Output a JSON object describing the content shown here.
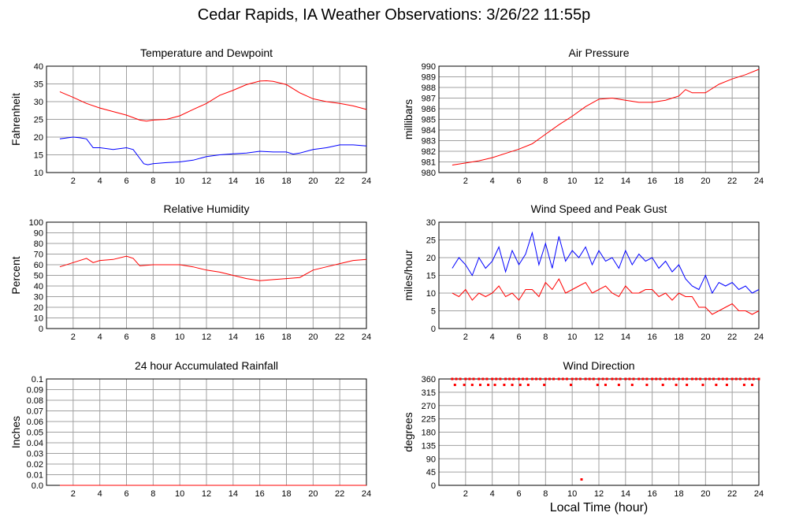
{
  "page_title": "Cedar Rapids, IA Weather Observations: 3/26/22 11:55p",
  "xlabel": "Local Time (hour)",
  "colors": {
    "red": "#ff0000",
    "blue": "#0000ff",
    "grid": "#a0a0a0"
  },
  "chart_data": [
    {
      "id": "temp",
      "type": "line",
      "title": "Temperature and Dewpoint",
      "ylabel": "Fahrenheit",
      "xlim": [
        0,
        24
      ],
      "ylim": [
        10,
        40
      ],
      "xticks": [
        2,
        4,
        6,
        8,
        10,
        12,
        14,
        16,
        18,
        20,
        22,
        24
      ],
      "yticks": [
        10,
        15,
        20,
        25,
        30,
        35,
        40
      ],
      "series": [
        {
          "color": "#ff0000",
          "x": [
            1,
            2,
            3,
            4,
            5,
            6,
            7,
            7.5,
            8,
            9,
            10,
            11,
            12,
            13,
            14,
            15,
            16,
            16.5,
            17,
            18,
            19,
            20,
            21,
            22,
            23,
            24
          ],
          "y": [
            32.8,
            31.2,
            29.5,
            28.2,
            27.2,
            26.2,
            24.8,
            24.5,
            24.8,
            25.0,
            26.0,
            27.8,
            29.5,
            31.8,
            33.2,
            34.8,
            35.8,
            35.9,
            35.7,
            34.8,
            32.5,
            30.8,
            30.0,
            29.5,
            28.8,
            27.8
          ]
        },
        {
          "color": "#0000ff",
          "x": [
            1,
            2,
            2.5,
            3,
            3.5,
            4,
            5,
            6,
            6.5,
            7,
            7.3,
            7.6,
            8,
            9,
            10,
            11,
            12,
            13,
            14,
            15,
            16,
            17,
            18,
            18.5,
            19,
            20,
            21,
            22,
            23,
            24
          ],
          "y": [
            19.5,
            20.0,
            19.8,
            19.5,
            17.0,
            17.0,
            16.5,
            17.0,
            16.5,
            14.0,
            12.5,
            12.2,
            12.5,
            12.8,
            13.0,
            13.5,
            14.5,
            15.0,
            15.3,
            15.5,
            16.0,
            15.8,
            15.8,
            15.2,
            15.5,
            16.5,
            17.0,
            17.8,
            17.8,
            17.5
          ]
        }
      ]
    },
    {
      "id": "pressure",
      "type": "line",
      "title": "Air Pressure",
      "ylabel": "millibars",
      "xlim": [
        0,
        24
      ],
      "ylim": [
        980,
        990
      ],
      "xticks": [
        2,
        4,
        6,
        8,
        10,
        12,
        14,
        16,
        18,
        20,
        22,
        24
      ],
      "yticks": [
        980,
        981,
        982,
        983,
        984,
        985,
        986,
        987,
        988,
        989,
        990
      ],
      "series": [
        {
          "color": "#ff0000",
          "x": [
            1,
            2,
            3,
            4,
            5,
            6,
            7,
            8,
            9,
            10,
            11,
            12,
            13,
            14,
            15,
            16,
            17,
            18,
            18.5,
            19,
            20,
            21,
            22,
            23,
            24
          ],
          "y": [
            980.7,
            980.9,
            981.1,
            981.4,
            981.8,
            982.2,
            982.7,
            983.6,
            984.5,
            985.3,
            986.2,
            986.9,
            987.0,
            986.8,
            986.6,
            986.6,
            986.8,
            987.2,
            987.8,
            987.5,
            987.5,
            988.3,
            988.8,
            989.2,
            989.7
          ]
        }
      ]
    },
    {
      "id": "humidity",
      "type": "line",
      "title": "Relative Humidity",
      "ylabel": "Percent",
      "xlim": [
        0,
        24
      ],
      "ylim": [
        0,
        100
      ],
      "xticks": [
        2,
        4,
        6,
        8,
        10,
        12,
        14,
        16,
        18,
        20,
        22,
        24
      ],
      "yticks": [
        0,
        10,
        20,
        30,
        40,
        50,
        60,
        70,
        80,
        90,
        100
      ],
      "series": [
        {
          "color": "#ff0000",
          "x": [
            1,
            2,
            3,
            3.5,
            4,
            5,
            6,
            6.5,
            7,
            8,
            9,
            10,
            11,
            12,
            13,
            14,
            15,
            16,
            17,
            18,
            19,
            20,
            21,
            22,
            23,
            24
          ],
          "y": [
            58,
            62,
            66,
            62,
            64,
            65,
            68,
            66,
            59,
            60,
            60,
            60,
            58,
            55,
            53,
            50,
            47,
            45,
            46,
            47,
            48,
            55,
            58,
            61,
            64,
            65
          ]
        }
      ]
    },
    {
      "id": "wind",
      "type": "line",
      "title": "Wind Speed and Peak Gust",
      "ylabel": "miles/hour",
      "xlim": [
        0,
        24
      ],
      "ylim": [
        0,
        30
      ],
      "xticks": [
        2,
        4,
        6,
        8,
        10,
        12,
        14,
        16,
        18,
        20,
        22,
        24
      ],
      "yticks": [
        0,
        5,
        10,
        15,
        20,
        25,
        30
      ],
      "series": [
        {
          "color": "#0000ff",
          "x": [
            1,
            1.5,
            2,
            2.5,
            3,
            3.5,
            4,
            4.5,
            5,
            5.5,
            6,
            6.5,
            7,
            7.5,
            8,
            8.5,
            9,
            9.5,
            10,
            10.5,
            11,
            11.5,
            12,
            12.5,
            13,
            13.5,
            14,
            14.5,
            15,
            15.5,
            16,
            16.5,
            17,
            17.5,
            18,
            18.5,
            19,
            19.5,
            20,
            20.5,
            21,
            21.5,
            22,
            22.5,
            23,
            23.5,
            24
          ],
          "y": [
            17,
            20,
            18,
            15,
            20,
            17,
            19,
            23,
            16,
            22,
            18,
            21,
            27,
            18,
            24,
            17,
            26,
            19,
            22,
            20,
            23,
            18,
            22,
            19,
            20,
            17,
            22,
            18,
            21,
            19,
            20,
            17,
            19,
            16,
            18,
            14,
            12,
            11,
            15,
            10,
            13,
            12,
            13,
            11,
            12,
            10,
            11
          ]
        },
        {
          "color": "#ff0000",
          "x": [
            1,
            1.5,
            2,
            2.5,
            3,
            3.5,
            4,
            4.5,
            5,
            5.5,
            6,
            6.5,
            7,
            7.5,
            8,
            8.5,
            9,
            9.5,
            10,
            10.5,
            11,
            11.5,
            12,
            12.5,
            13,
            13.5,
            14,
            14.5,
            15,
            15.5,
            16,
            16.5,
            17,
            17.5,
            18,
            18.5,
            19,
            19.5,
            20,
            20.5,
            21,
            21.5,
            22,
            22.5,
            23,
            23.5,
            24
          ],
          "y": [
            10,
            9,
            11,
            8,
            10,
            9,
            10,
            12,
            9,
            10,
            8,
            11,
            11,
            9,
            13,
            11,
            14,
            10,
            11,
            12,
            13,
            10,
            11,
            12,
            10,
            9,
            12,
            10,
            10,
            11,
            11,
            9,
            10,
            8,
            10,
            9,
            9,
            6,
            6,
            4,
            5,
            6,
            7,
            5,
            5,
            4,
            5
          ]
        }
      ]
    },
    {
      "id": "rain",
      "type": "line",
      "title": "24 hour Accumulated Rainfall",
      "ylabel": "Inches",
      "xlim": [
        0,
        24
      ],
      "ylim": [
        0,
        0.1
      ],
      "xticks": [
        2,
        4,
        6,
        8,
        10,
        12,
        14,
        16,
        18,
        20,
        22,
        24
      ],
      "yticks": [
        0.0,
        0.01,
        0.02,
        0.03,
        0.04,
        0.05,
        0.06,
        0.07,
        0.08,
        0.09,
        0.1
      ],
      "ytick_labels": [
        "0.0",
        "0.01",
        "0.02",
        "0.03",
        "0.04",
        "0.05",
        "0.06",
        "0.07",
        "0.08",
        "0.09",
        "0.1"
      ],
      "series": [
        {
          "color": "#ff0000",
          "x": [
            1,
            24
          ],
          "y": [
            0,
            0
          ]
        }
      ]
    },
    {
      "id": "direction",
      "type": "scatter",
      "title": "Wind Direction",
      "ylabel": "degrees",
      "xlim": [
        0,
        24
      ],
      "ylim": [
        0,
        360
      ],
      "xticks": [
        2,
        4,
        6,
        8,
        10,
        12,
        14,
        16,
        18,
        20,
        22,
        24
      ],
      "yticks": [
        0,
        45,
        90,
        135,
        180,
        225,
        270,
        315,
        360
      ],
      "series": [
        {
          "color": "#ff0000",
          "x": [
            1,
            1.3,
            1.6,
            2.0,
            2.3,
            2.6,
            3.0,
            3.3,
            3.6,
            4.0,
            4.3,
            4.6,
            5.0,
            5.3,
            5.6,
            6.0,
            6.3,
            6.6,
            7.0,
            7.3,
            7.6,
            8.0,
            8.3,
            8.6,
            9.0,
            9.3,
            9.6,
            10.0,
            10.3,
            10.6,
            11.0,
            11.3,
            11.6,
            12.0,
            12.3,
            12.6,
            13.0,
            13.3,
            13.6,
            14.0,
            14.3,
            14.6,
            15.0,
            15.3,
            15.6,
            16.0,
            16.3,
            16.6,
            17.0,
            17.3,
            17.6,
            18.0,
            18.3,
            18.6,
            19.0,
            19.3,
            19.6,
            20.0,
            20.3,
            20.6,
            21.0,
            21.3,
            21.6,
            22.0,
            22.3,
            22.6,
            23.0,
            23.3,
            23.6,
            24.0,
            1.2,
            1.9,
            2.5,
            3.1,
            3.7,
            4.2,
            4.9,
            5.5,
            6.1,
            6.7,
            7.9,
            9.9,
            11.9,
            12.5,
            13.5,
            14.5,
            15.6,
            16.8,
            17.8,
            18.6,
            19.8,
            20.8,
            21.6,
            22.9,
            23.5,
            10.7
          ],
          "y": [
            360,
            360,
            360,
            360,
            360,
            360,
            360,
            360,
            360,
            360,
            360,
            360,
            360,
            360,
            360,
            360,
            360,
            360,
            360,
            360,
            360,
            360,
            360,
            360,
            360,
            360,
            360,
            360,
            360,
            360,
            360,
            360,
            360,
            360,
            360,
            360,
            360,
            360,
            360,
            360,
            360,
            360,
            360,
            360,
            360,
            360,
            360,
            360,
            360,
            360,
            360,
            360,
            360,
            360,
            360,
            360,
            360,
            360,
            360,
            360,
            360,
            360,
            360,
            360,
            360,
            360,
            360,
            360,
            360,
            360,
            340,
            340,
            340,
            340,
            340,
            340,
            340,
            340,
            340,
            340,
            340,
            340,
            340,
            340,
            340,
            340,
            340,
            340,
            340,
            340,
            340,
            340,
            340,
            340,
            340,
            20
          ]
        }
      ]
    }
  ]
}
